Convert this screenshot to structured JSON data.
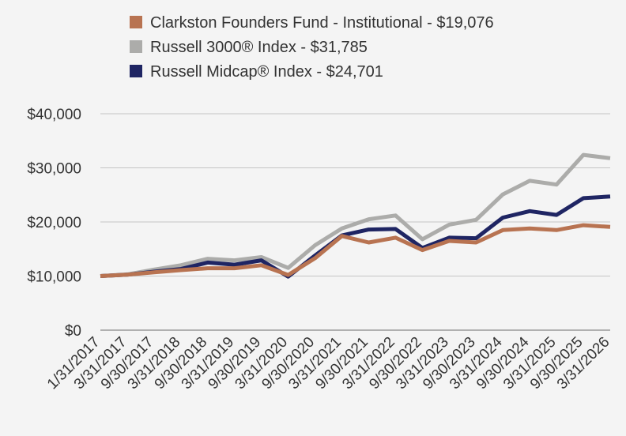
{
  "chart_data": {
    "type": "line",
    "categories": [
      "1/31/2017",
      "3/31/2017",
      "9/30/2017",
      "3/31/2018",
      "9/30/2018",
      "3/31/2019",
      "9/30/2019",
      "3/31/2020",
      "9/30/2020",
      "3/31/2021",
      "9/30/2021",
      "3/31/2022",
      "9/30/2022",
      "3/31/2023",
      "9/30/2023",
      "3/31/2024",
      "9/30/2024",
      "3/31/2025",
      "9/30/2025",
      "3/31/2026"
    ],
    "series": [
      {
        "name": "Clarkston Founders Fund - Institutional - $19,076",
        "color": "#b87351",
        "values": [
          10000,
          10250,
          10700,
          11100,
          11450,
          11450,
          12000,
          10200,
          13300,
          17400,
          16200,
          17100,
          14800,
          16500,
          16200,
          18500,
          18800,
          18500,
          19400,
          19076
        ]
      },
      {
        "name": "Russell 3000® Index - $31,785",
        "color": "#acacaa",
        "values": [
          10000,
          10300,
          11200,
          12000,
          13200,
          12900,
          13500,
          11500,
          15700,
          18800,
          20500,
          21200,
          16800,
          19500,
          20400,
          25100,
          27600,
          26900,
          32400,
          31785
        ]
      },
      {
        "name": "Russell Midcap® Index - $24,701",
        "color": "#1f2563",
        "values": [
          10000,
          10250,
          10800,
          11300,
          12500,
          12100,
          12900,
          9900,
          13800,
          17500,
          18600,
          18700,
          15200,
          17100,
          17000,
          20800,
          22000,
          21300,
          24400,
          24701
        ]
      }
    ],
    "y_ticks": [
      "$0",
      "$10,000",
      "$20,000",
      "$30,000",
      "$40,000"
    ],
    "ylim": [
      0,
      40000
    ],
    "grid": true,
    "legend_position": "top-left",
    "title": "",
    "xlabel": "",
    "ylabel": ""
  }
}
